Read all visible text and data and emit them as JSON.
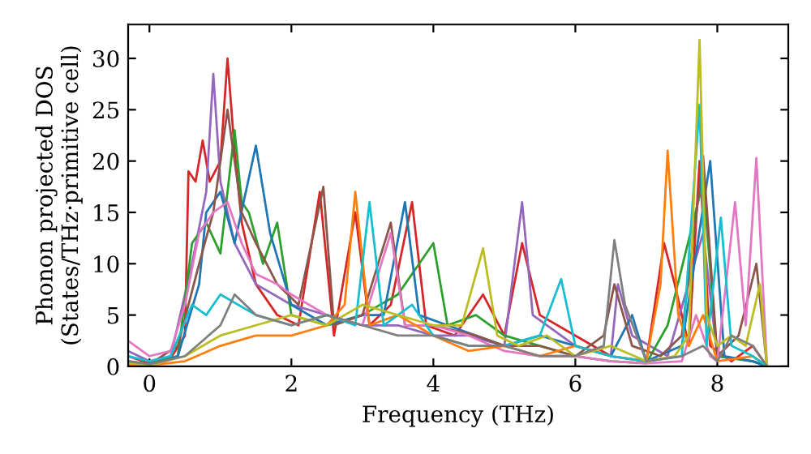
{
  "chart_data": {
    "type": "line",
    "xlabel": "Frequency (THz)",
    "ylabel": "Phonon projected DOS\n(States/THz·primitive cell)",
    "xlim": [
      -0.3,
      9.0
    ],
    "ylim": [
      0,
      33.3
    ],
    "xticks": [
      0,
      2,
      4,
      6,
      8
    ],
    "yticks": [
      0,
      5,
      10,
      15,
      20,
      25,
      30
    ],
    "marker": "none",
    "line_style": "solid",
    "series": [
      {
        "color": "#d62728",
        "x": [
          -0.3,
          0,
          0.3,
          0.5,
          0.55,
          0.65,
          0.75,
          0.85,
          1.0,
          1.1,
          1.2,
          1.3,
          1.5,
          1.8,
          2.1,
          2.4,
          2.6,
          2.9,
          3.1,
          3.4,
          3.7,
          3.9,
          4.3,
          4.7,
          5.0,
          5.25,
          5.5,
          6.0,
          6.5,
          7.0,
          7.25,
          7.4,
          7.6,
          7.75,
          7.9,
          8.2,
          8.5,
          8.7
        ],
        "values": [
          1,
          0.3,
          0.8,
          3,
          19,
          18,
          22,
          18,
          20,
          30,
          21,
          14,
          8,
          5,
          4,
          17,
          3,
          15,
          4,
          6,
          16,
          4,
          3,
          7,
          3,
          12,
          5,
          3,
          1,
          0.5,
          12,
          8,
          2,
          20,
          2,
          0.5,
          2,
          0
        ]
      },
      {
        "color": "#9467bd",
        "x": [
          -0.3,
          0,
          0.3,
          0.6,
          0.8,
          0.9,
          1.0,
          1.2,
          1.5,
          2.0,
          2.5,
          3.0,
          3.5,
          4.0,
          4.5,
          5.0,
          5.25,
          5.4,
          6.0,
          6.5,
          6.6,
          6.8,
          7.3,
          7.8,
          8.0,
          8.5,
          8.7
        ],
        "values": [
          1.5,
          0.5,
          1,
          10,
          17,
          28.5,
          18,
          12,
          8,
          6,
          5,
          4,
          4,
          3,
          3,
          2,
          16,
          5,
          2,
          1,
          8,
          3,
          1,
          13,
          1,
          0.5,
          0
        ]
      },
      {
        "color": "#2ca02c",
        "x": [
          -0.3,
          0,
          0.4,
          0.6,
          0.8,
          1.0,
          1.2,
          1.3,
          1.4,
          1.6,
          1.8,
          2.0,
          2.5,
          3.0,
          3.5,
          4.0,
          4.2,
          4.6,
          5.0,
          5.5,
          6.0,
          6.5,
          7.0,
          7.3,
          7.8,
          8.0,
          8.5,
          8.7
        ],
        "values": [
          0.5,
          0.2,
          1,
          12,
          14,
          11,
          23,
          16,
          15,
          10,
          14,
          5,
          4,
          5,
          7,
          12,
          4,
          5,
          3,
          2,
          1,
          0.5,
          0.3,
          4,
          18,
          1,
          0.5,
          0
        ]
      },
      {
        "color": "#1f77b4",
        "x": [
          -0.3,
          0,
          0.4,
          0.7,
          0.8,
          1.0,
          1.2,
          1.5,
          1.7,
          2.0,
          2.5,
          3.0,
          3.3,
          3.6,
          3.8,
          4.2,
          5.0,
          5.5,
          6.0,
          6.5,
          6.8,
          7.0,
          7.5,
          7.9,
          8.1,
          8.5,
          8.7
        ],
        "values": [
          0.3,
          0.1,
          1,
          8,
          15,
          17,
          12,
          21.5,
          13,
          6,
          4,
          5,
          5,
          16,
          5,
          4,
          2,
          3,
          2,
          1,
          5,
          0.5,
          2,
          20,
          1,
          0.5,
          0
        ]
      },
      {
        "color": "#8c564b",
        "x": [
          -0.3,
          0,
          0.4,
          0.7,
          0.9,
          1.1,
          1.2,
          1.3,
          1.5,
          1.8,
          2.1,
          2.45,
          2.6,
          3.0,
          3.4,
          3.6,
          4.0,
          4.6,
          5.0,
          5.5,
          6.0,
          6.4,
          6.55,
          6.8,
          7.2,
          7.5,
          7.8,
          8.0,
          8.3,
          8.55,
          8.7
        ],
        "values": [
          0.5,
          0.2,
          2,
          10,
          15,
          25,
          20,
          15,
          12,
          8,
          6,
          17.5,
          4,
          5,
          14,
          4,
          4,
          3,
          2,
          2,
          1,
          3,
          8,
          2,
          1,
          3,
          20.5,
          1,
          3,
          10,
          0
        ]
      },
      {
        "color": "#e377c2",
        "x": [
          -0.3,
          0,
          0.3,
          0.5,
          0.7,
          0.9,
          1.1,
          1.3,
          1.5,
          1.8,
          2.0,
          2.5,
          3.0,
          3.4,
          3.6,
          4.0,
          4.5,
          5.0,
          5.5,
          6.0,
          6.5,
          7.0,
          7.5,
          7.7,
          7.9,
          8.0,
          8.25,
          8.4,
          8.55,
          8.7
        ],
        "values": [
          2.5,
          1,
          1.5,
          6,
          13,
          15,
          16,
          12,
          9,
          8,
          7,
          5,
          4,
          13,
          4,
          4,
          3,
          1.5,
          1,
          1,
          0.5,
          0.3,
          0.5,
          5,
          1,
          0.5,
          16,
          4,
          20.3,
          0
        ]
      },
      {
        "color": "#ff7f0e",
        "x": [
          -0.3,
          0,
          0.5,
          1.0,
          1.5,
          2.0,
          2.5,
          2.75,
          2.9,
          3.1,
          3.5,
          4.0,
          4.5,
          5.0,
          5.5,
          6.0,
          6.5,
          7.0,
          7.2,
          7.3,
          7.45,
          7.6,
          7.8,
          8.0,
          8.5,
          8.7
        ],
        "values": [
          0.1,
          0.1,
          0.5,
          2,
          3,
          3,
          4,
          6,
          17,
          4,
          5,
          3,
          1.5,
          2,
          1,
          2,
          1,
          0.5,
          8,
          21,
          5,
          2,
          5,
          0.5,
          1,
          0
        ]
      },
      {
        "color": "#17becf",
        "x": [
          -0.3,
          0,
          0.3,
          0.6,
          0.8,
          1.0,
          1.5,
          2.0,
          2.5,
          2.9,
          3.1,
          3.3,
          3.7,
          4.0,
          4.5,
          5.0,
          5.5,
          5.8,
          6.0,
          6.5,
          7.0,
          7.5,
          7.75,
          7.85,
          8.05,
          8.2,
          8.5,
          8.7
        ],
        "values": [
          1,
          0.5,
          1,
          6,
          5,
          7,
          5,
          4,
          5,
          4,
          16,
          4,
          6,
          3,
          2,
          2,
          3,
          8.5,
          2,
          1,
          0.5,
          1,
          25.5,
          2,
          14.5,
          2,
          1,
          0
        ]
      },
      {
        "color": "#bcbd22",
        "x": [
          -0.3,
          0,
          0.5,
          1.0,
          1.5,
          2.0,
          2.5,
          3.0,
          3.5,
          4.0,
          4.4,
          4.7,
          4.9,
          5.2,
          5.6,
          6.0,
          6.5,
          7.0,
          7.4,
          7.6,
          7.75,
          7.85,
          8.0,
          8.2,
          8.4,
          8.6,
          8.7
        ],
        "values": [
          0.3,
          0.1,
          1,
          3,
          4,
          5,
          4,
          6,
          5,
          4,
          4,
          11.5,
          3,
          2,
          3,
          1,
          2,
          0.5,
          1,
          3,
          31.8,
          5,
          2,
          3,
          2,
          8,
          0
        ]
      },
      {
        "color": "#7f7f7f",
        "x": [
          -0.3,
          0,
          0.5,
          1.0,
          1.2,
          1.5,
          2.0,
          2.5,
          3.0,
          3.5,
          4.0,
          4.5,
          5.0,
          5.5,
          6.0,
          6.4,
          6.55,
          6.7,
          7.0,
          7.5,
          7.8,
          8.0,
          8.2,
          8.5,
          8.7
        ],
        "values": [
          0.5,
          0.2,
          1,
          4,
          7,
          5,
          4,
          5,
          4,
          3,
          3,
          2,
          2,
          1,
          1,
          2,
          12.3,
          6,
          0.5,
          1,
          2,
          0.5,
          3,
          2,
          0
        ]
      }
    ]
  }
}
